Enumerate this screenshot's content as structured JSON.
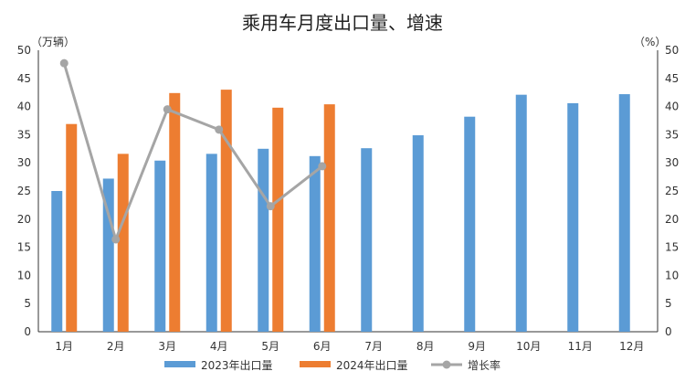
{
  "chart_data": {
    "type": "bar",
    "title": "乘用车月度出口量、增速",
    "left_unit": "（万辆）",
    "right_unit": "（%）",
    "categories": [
      "1月",
      "2月",
      "3月",
      "4月",
      "5月",
      "6月",
      "7月",
      "8月",
      "9月",
      "10月",
      "11月",
      "12月"
    ],
    "left_axis": {
      "min": 0,
      "max": 50,
      "step": 5
    },
    "right_axis": {
      "min": 0,
      "max": 50,
      "step": 5
    },
    "series": [
      {
        "name": "2023年出口量",
        "kind": "bar",
        "axis": "left",
        "color": "#5B9BD5",
        "values": [
          25.0,
          27.2,
          30.4,
          31.6,
          32.5,
          31.2,
          32.6,
          34.9,
          38.2,
          42.1,
          40.6,
          42.2
        ]
      },
      {
        "name": "2024年出口量",
        "kind": "bar",
        "axis": "left",
        "color": "#ED7D31",
        "values": [
          36.9,
          31.6,
          42.4,
          43.0,
          39.8,
          40.4,
          null,
          null,
          null,
          null,
          null,
          null
        ]
      },
      {
        "name": "增长率",
        "kind": "line",
        "axis": "right",
        "color": "#A5A5A5",
        "values": [
          47.7,
          16.4,
          39.5,
          35.9,
          22.3,
          29.4,
          null,
          null,
          null,
          null,
          null,
          null
        ]
      }
    ],
    "legend_position": "bottom",
    "grid": false
  }
}
